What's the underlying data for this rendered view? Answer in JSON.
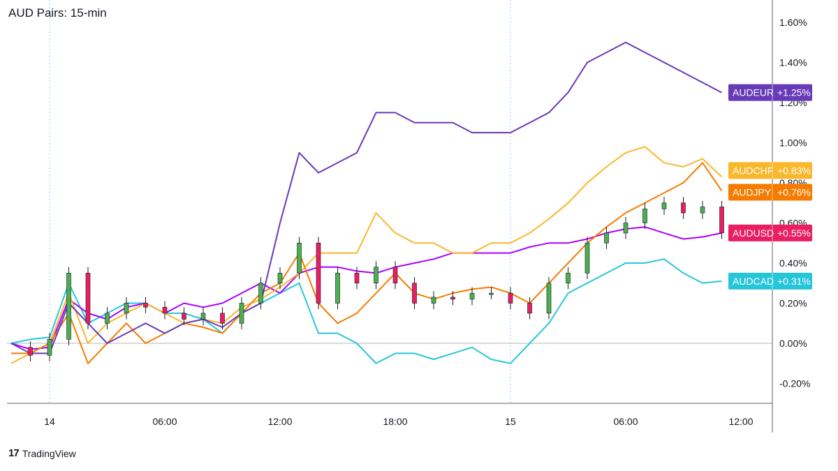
{
  "header": {
    "title": "AUD Pairs: 15-min"
  },
  "brand": {
    "logo_text": "17",
    "name": "TradingView"
  },
  "chart_data": {
    "type": "line",
    "title": "AUD Pairs: 15-min",
    "x_ticks": [
      "14",
      "06:00",
      "12:00",
      "18:00",
      "15",
      "06:00",
      "12:00"
    ],
    "y_ticks": [
      "1.60%",
      "1.40%",
      "1.20%",
      "1.00%",
      "0.80%",
      "0.60%",
      "0.40%",
      "0.20%",
      "0.00%",
      "-0.20%"
    ],
    "ylim": [
      -0.3,
      1.65
    ],
    "xlim": [
      -2.1,
      37
    ],
    "y_unit": "%",
    "grid": false,
    "legend": "right-axis badges",
    "day_separators": [
      0,
      24
    ],
    "series": [
      {
        "name": "AUDEUR",
        "last_label": "+1.25%",
        "color": "#673ab7",
        "x": [
          -2,
          -1,
          0,
          1,
          2,
          3,
          4,
          5,
          6,
          7,
          8,
          9,
          10,
          11,
          12,
          13,
          14,
          15,
          16,
          17,
          18,
          19,
          20,
          21,
          22,
          23,
          24,
          25,
          26,
          27,
          28,
          29,
          30,
          31,
          32,
          33,
          34,
          35
        ],
        "y": [
          0.0,
          -0.05,
          -0.05,
          0.2,
          0.1,
          0.0,
          0.05,
          0.1,
          0.05,
          0.1,
          0.12,
          0.08,
          0.15,
          0.2,
          0.6,
          0.95,
          0.85,
          0.9,
          0.95,
          1.15,
          1.15,
          1.1,
          1.1,
          1.1,
          1.05,
          1.05,
          1.05,
          1.1,
          1.15,
          1.25,
          1.4,
          1.45,
          1.5,
          1.45,
          1.4,
          1.35,
          1.3,
          1.25
        ]
      },
      {
        "name": "AUDCHF",
        "last_label": "+0.83%",
        "color": "#f9b82c",
        "x": [
          -2,
          -1,
          0,
          1,
          2,
          3,
          4,
          5,
          6,
          7,
          8,
          9,
          10,
          11,
          12,
          13,
          14,
          15,
          16,
          17,
          18,
          19,
          20,
          21,
          22,
          23,
          24,
          25,
          26,
          27,
          28,
          29,
          30,
          31,
          32,
          33,
          34,
          35
        ],
        "y": [
          -0.1,
          -0.05,
          0.0,
          0.25,
          0.0,
          0.1,
          0.15,
          0.2,
          0.15,
          0.1,
          0.12,
          0.1,
          0.18,
          0.22,
          0.28,
          0.35,
          0.45,
          0.45,
          0.45,
          0.65,
          0.55,
          0.5,
          0.5,
          0.45,
          0.45,
          0.5,
          0.5,
          0.55,
          0.62,
          0.7,
          0.8,
          0.88,
          0.95,
          0.98,
          0.9,
          0.88,
          0.92,
          0.83
        ]
      },
      {
        "name": "AUDJPY",
        "last_label": "+0.76%",
        "color": "#f57c00",
        "x": [
          -2,
          -1,
          0,
          1,
          2,
          3,
          4,
          5,
          6,
          7,
          8,
          9,
          10,
          11,
          12,
          13,
          14,
          15,
          16,
          17,
          18,
          19,
          20,
          21,
          22,
          23,
          24,
          25,
          26,
          27,
          28,
          29,
          30,
          31,
          32,
          33,
          34,
          35
        ],
        "y": [
          -0.05,
          -0.05,
          0.0,
          0.15,
          -0.1,
          0.0,
          0.1,
          0.0,
          0.05,
          0.1,
          0.08,
          0.05,
          0.15,
          0.25,
          0.3,
          0.45,
          0.2,
          0.1,
          0.15,
          0.25,
          0.35,
          0.25,
          0.22,
          0.25,
          0.27,
          0.28,
          0.25,
          0.2,
          0.3,
          0.4,
          0.5,
          0.58,
          0.65,
          0.7,
          0.75,
          0.8,
          0.9,
          0.76
        ]
      },
      {
        "name": "AUDUSD",
        "last_label": "+0.55%",
        "color": "#e91e63",
        "x": [
          -2,
          -1,
          0,
          1,
          2,
          3,
          4,
          5,
          6,
          7,
          8,
          9,
          10,
          11,
          12,
          13,
          14,
          15,
          16,
          17,
          18,
          19,
          20,
          21,
          22,
          23,
          24,
          25,
          26,
          27,
          28,
          29,
          30,
          31,
          32,
          33,
          34,
          35
        ],
        "y": [
          -0.02,
          -0.06,
          0.02,
          0.35,
          0.1,
          0.15,
          0.2,
          0.18,
          0.15,
          0.12,
          0.15,
          0.1,
          0.2,
          0.3,
          0.35,
          0.5,
          0.2,
          0.35,
          0.3,
          0.38,
          0.3,
          0.2,
          0.23,
          0.22,
          0.25,
          0.25,
          0.2,
          0.15,
          0.3,
          0.35,
          0.5,
          0.55,
          0.6,
          0.67,
          0.7,
          0.65,
          0.68,
          0.55
        ],
        "style": "candles"
      },
      {
        "name": "AUDCAD",
        "last_label": "+0.31%",
        "color": "#26c6da",
        "x": [
          -2,
          -1,
          0,
          1,
          2,
          3,
          4,
          5,
          6,
          7,
          8,
          9,
          10,
          11,
          12,
          13,
          14,
          15,
          16,
          17,
          18,
          19,
          20,
          21,
          22,
          23,
          24,
          25,
          26,
          27,
          28,
          29,
          30,
          31,
          32,
          33,
          34,
          35
        ],
        "y": [
          0.0,
          0.02,
          0.03,
          0.3,
          0.1,
          0.15,
          0.2,
          0.2,
          0.15,
          0.15,
          0.12,
          0.05,
          0.15,
          0.2,
          0.25,
          0.3,
          0.05,
          0.05,
          0.0,
          -0.1,
          -0.05,
          -0.05,
          -0.08,
          -0.05,
          -0.02,
          -0.08,
          -0.1,
          0.0,
          0.1,
          0.25,
          0.3,
          0.35,
          0.4,
          0.4,
          0.42,
          0.35,
          0.3,
          0.31
        ]
      },
      {
        "name": "",
        "last_label": "",
        "color": "#aa00ff",
        "x": [
          -2,
          -1,
          0,
          1,
          2,
          3,
          4,
          5,
          6,
          7,
          8,
          9,
          10,
          11,
          12,
          13,
          14,
          15,
          16,
          17,
          18,
          19,
          20,
          21,
          22,
          23,
          24,
          25,
          26,
          27,
          28,
          29,
          30,
          31,
          32,
          33,
          34,
          35
        ],
        "y": [
          0.0,
          -0.03,
          -0.02,
          0.22,
          0.15,
          0.12,
          0.18,
          0.2,
          0.15,
          0.2,
          0.18,
          0.2,
          0.25,
          0.3,
          0.25,
          0.35,
          0.38,
          0.38,
          0.36,
          0.35,
          0.38,
          0.4,
          0.42,
          0.45,
          0.45,
          0.45,
          0.45,
          0.48,
          0.5,
          0.5,
          0.52,
          0.55,
          0.57,
          0.58,
          0.55,
          0.52,
          0.53,
          0.55
        ]
      }
    ]
  }
}
